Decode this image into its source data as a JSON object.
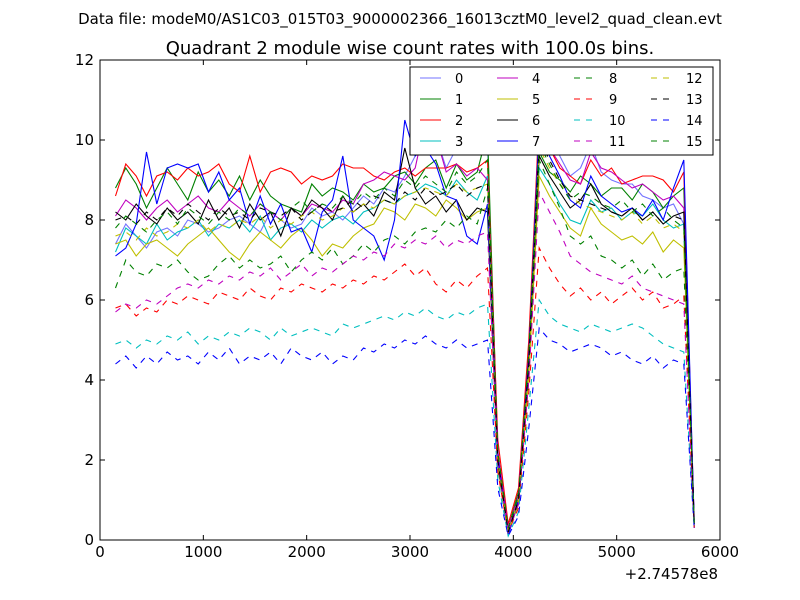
{
  "chart_data": {
    "type": "line",
    "suptitle": "Data file: modeM0/AS1C03_015T03_9000002366_16013cztM0_level2_quad_clean.evt",
    "title": "Quadrant 2 module wise count rates with 100.0s bins.",
    "xlabel": "",
    "ylabel": "",
    "x_offset_label": "+2.74578e8",
    "xlim": [
      0,
      6000
    ],
    "ylim": [
      0,
      12
    ],
    "xticks": [
      0,
      1000,
      2000,
      3000,
      4000,
      5000,
      6000
    ],
    "yticks": [
      0,
      2,
      4,
      6,
      8,
      10,
      12
    ],
    "grid": false,
    "legend_position": "top-right",
    "legend_columns": 4,
    "x": [
      150,
      250,
      350,
      450,
      550,
      650,
      750,
      850,
      950,
      1050,
      1150,
      1250,
      1350,
      1450,
      1550,
      1650,
      1750,
      1850,
      1950,
      2050,
      2150,
      2250,
      2350,
      2450,
      2550,
      2650,
      2750,
      2850,
      2950,
      3050,
      3150,
      3250,
      3350,
      3450,
      3550,
      3650,
      3750,
      3850,
      3950,
      4050,
      4150,
      4250,
      4350,
      4450,
      4550,
      4650,
      4750,
      4850,
      4950,
      5050,
      5150,
      5250,
      5350,
      5450,
      5550,
      5650,
      5750
    ],
    "series": [
      {
        "name": "0",
        "color": "#0000ff",
        "dash": "solid",
        "alpha": 0.55,
        "values": [
          7.4,
          7.9,
          7.6,
          7.3,
          7.7,
          7.8,
          7.6,
          8.0,
          7.9,
          7.7,
          7.8,
          8.0,
          8.1,
          7.9,
          7.7,
          8.2,
          8.0,
          7.8,
          7.9,
          8.3,
          8.1,
          8.2,
          8.0,
          8.3,
          8.6,
          8.4,
          8.8,
          8.7,
          9.1,
          9.6,
          10.5,
          10.1,
          9.3,
          9.8,
          10.6,
          10.2,
          9.9,
          2.0,
          0.2,
          1.0,
          4.5,
          10.6,
          10.4,
          9.6,
          9.1,
          9.3,
          9.9,
          9.2,
          9.0,
          8.9,
          8.9,
          8.6,
          8.5,
          8.3,
          8.4,
          7.9,
          0.5
        ]
      },
      {
        "name": "1",
        "color": "#008000",
        "dash": "solid",
        "alpha": 1,
        "values": [
          8.8,
          9.3,
          8.9,
          8.3,
          8.8,
          9.3,
          8.9,
          8.5,
          9.2,
          8.7,
          9.0,
          8.6,
          9.1,
          8.5,
          9.0,
          8.6,
          8.4,
          8.3,
          8.2,
          8.9,
          8.6,
          8.8,
          8.7,
          8.5,
          8.9,
          8.7,
          8.8,
          9.1,
          9.2,
          8.9,
          9.3,
          9.5,
          8.8,
          9.4,
          9.0,
          9.2,
          10.2,
          2.2,
          0.3,
          1.2,
          4.8,
          9.7,
          9.2,
          9.0,
          8.7,
          9.1,
          8.9,
          8.6,
          8.8,
          8.8,
          8.5,
          8.9,
          8.7,
          8.3,
          8.6,
          8.8,
          0.4
        ]
      },
      {
        "name": "2",
        "color": "#ff0000",
        "dash": "solid",
        "alpha": 1,
        "values": [
          8.6,
          9.4,
          9.1,
          8.6,
          9.1,
          9.2,
          9.0,
          9.3,
          9.1,
          9.2,
          9.4,
          8.9,
          8.7,
          9.6,
          8.7,
          9.2,
          9.3,
          9.2,
          8.9,
          9.1,
          9.0,
          9.1,
          9.4,
          9.3,
          9.3,
          9.1,
          9.0,
          9.2,
          9.3,
          9.1,
          9.3,
          9.3,
          9.3,
          9.4,
          9.2,
          9.3,
          9.5,
          2.5,
          0.4,
          1.3,
          5.0,
          10.6,
          9.8,
          9.3,
          9.1,
          8.9,
          9.5,
          9.1,
          9.3,
          8.9,
          9.0,
          9.1,
          9.1,
          9.0,
          8.7,
          9.2,
          0.4
        ]
      },
      {
        "name": "3",
        "color": "#00bfbf",
        "dash": "solid",
        "alpha": 1,
        "values": [
          7.2,
          7.8,
          7.6,
          7.4,
          7.9,
          7.5,
          7.7,
          7.8,
          8.0,
          7.6,
          7.9,
          7.8,
          8.0,
          7.7,
          8.1,
          7.5,
          7.8,
          7.9,
          7.7,
          8.0,
          7.8,
          8.0,
          8.1,
          7.9,
          8.2,
          8.3,
          8.5,
          8.4,
          8.6,
          8.7,
          8.9,
          8.8,
          8.6,
          9.0,
          8.7,
          8.5,
          9.1,
          2.0,
          0.2,
          1.0,
          4.3,
          9.3,
          8.9,
          8.4,
          8.0,
          7.9,
          8.5,
          8.2,
          8.3,
          8.0,
          8.2,
          8.1,
          8.4,
          8.0,
          7.8,
          7.9,
          0.4
        ]
      },
      {
        "name": "4",
        "color": "#bf00bf",
        "dash": "solid",
        "alpha": 1,
        "values": [
          8.1,
          8.5,
          8.3,
          8.0,
          8.3,
          8.5,
          8.2,
          8.4,
          8.6,
          8.3,
          8.2,
          8.5,
          8.3,
          8.1,
          8.4,
          8.2,
          8.0,
          8.3,
          8.1,
          8.4,
          8.3,
          8.2,
          8.5,
          8.4,
          8.9,
          9.0,
          9.2,
          9.1,
          9.0,
          9.3,
          10.5,
          10.1,
          9.2,
          9.4,
          9.1,
          9.3,
          9.0,
          2.2,
          0.3,
          1.1,
          4.6,
          10.4,
          9.8,
          9.4,
          9.0,
          8.9,
          9.7,
          9.3,
          9.2,
          9.0,
          8.8,
          8.9,
          8.7,
          8.5,
          8.6,
          8.3,
          0.5
        ]
      },
      {
        "name": "5",
        "color": "#bfbf00",
        "dash": "solid",
        "alpha": 1,
        "values": [
          7.4,
          7.5,
          7.1,
          7.4,
          7.5,
          7.3,
          7.1,
          7.4,
          7.6,
          7.8,
          7.5,
          7.2,
          7.0,
          7.4,
          7.7,
          7.5,
          7.3,
          7.6,
          7.8,
          7.5,
          7.1,
          7.4,
          7.3,
          7.6,
          7.8,
          7.9,
          8.3,
          8.2,
          8.0,
          8.4,
          8.3,
          8.1,
          8.5,
          8.3,
          8.0,
          8.2,
          8.3,
          1.8,
          0.2,
          0.9,
          4.1,
          9.1,
          8.6,
          8.2,
          7.8,
          7.6,
          8.3,
          7.9,
          7.7,
          7.5,
          7.6,
          7.4,
          7.7,
          7.2,
          7.5,
          7.3,
          0.3
        ]
      },
      {
        "name": "6",
        "color": "#000000",
        "dash": "solid",
        "alpha": 1,
        "values": [
          8.2,
          8.0,
          8.4,
          8.1,
          7.9,
          8.3,
          8.0,
          8.2,
          7.9,
          8.5,
          8.0,
          8.3,
          7.8,
          8.4,
          8.0,
          8.2,
          7.6,
          8.3,
          8.1,
          8.5,
          8.3,
          8.0,
          8.6,
          8.2,
          8.4,
          8.1,
          8.7,
          8.5,
          9.8,
          8.8,
          8.4,
          8.6,
          8.2,
          8.5,
          8.0,
          8.3,
          8.2,
          2.0,
          0.2,
          1.0,
          4.4,
          9.6,
          9.1,
          8.7,
          8.3,
          8.5,
          8.9,
          8.4,
          8.2,
          8.1,
          8.3,
          8.0,
          8.2,
          7.9,
          8.1,
          8.2,
          0.4
        ]
      },
      {
        "name": "7",
        "color": "#0000ff",
        "dash": "solid",
        "alpha": 1,
        "values": [
          7.1,
          7.3,
          7.9,
          9.7,
          8.4,
          9.3,
          9.4,
          9.3,
          9.4,
          8.7,
          9.2,
          8.5,
          8.8,
          7.9,
          8.6,
          7.9,
          8.4,
          7.7,
          7.8,
          7.2,
          8.2,
          8.5,
          9.6,
          8.0,
          7.8,
          7.6,
          7.0,
          8.0,
          10.5,
          9.6,
          9.8,
          9.4,
          8.6,
          8.5,
          7.6,
          7.4,
          8.4,
          2.1,
          0.1,
          1.0,
          4.6,
          10.3,
          9.6,
          9.1,
          8.5,
          8.3,
          9.1,
          8.6,
          8.4,
          8.2,
          8.3,
          8.1,
          8.5,
          8.0,
          8.8,
          9.5,
          0.4
        ]
      },
      {
        "name": "8",
        "color": "#008000",
        "dash": "dashed",
        "alpha": 1,
        "values": [
          6.3,
          7.0,
          6.7,
          6.6,
          6.9,
          6.8,
          7.0,
          6.7,
          6.5,
          6.6,
          6.9,
          7.1,
          6.8,
          7.0,
          6.8,
          6.9,
          7.1,
          6.7,
          7.0,
          7.2,
          7.0,
          7.3,
          6.9,
          7.1,
          7.4,
          7.2,
          7.5,
          7.6,
          7.4,
          7.7,
          7.8,
          7.7,
          8.0,
          7.8,
          8.1,
          7.9,
          8.8,
          1.8,
          0.2,
          0.9,
          4.0,
          9.5,
          8.9,
          8.3,
          7.6,
          7.4,
          7.6,
          7.1,
          7.0,
          6.8,
          7.0,
          6.6,
          6.9,
          6.5,
          6.7,
          6.8,
          0.3
        ]
      },
      {
        "name": "9",
        "color": "#ff0000",
        "dash": "dashed",
        "alpha": 1,
        "values": [
          5.8,
          5.9,
          5.6,
          5.8,
          5.7,
          6.0,
          5.9,
          6.1,
          6.0,
          5.9,
          6.2,
          6.1,
          6.0,
          6.3,
          6.1,
          6.0,
          6.3,
          6.2,
          6.4,
          6.3,
          6.2,
          6.4,
          6.3,
          6.5,
          6.4,
          6.6,
          6.5,
          6.7,
          6.9,
          6.6,
          6.8,
          6.4,
          6.2,
          6.5,
          6.3,
          6.6,
          6.8,
          1.7,
          0.2,
          0.8,
          3.7,
          7.3,
          6.8,
          6.4,
          6.1,
          6.3,
          6.0,
          6.2,
          5.9,
          6.1,
          6.3,
          6.0,
          6.2,
          5.8,
          5.9,
          6.1,
          0.3
        ]
      },
      {
        "name": "10",
        "color": "#00bfbf",
        "dash": "dashed",
        "alpha": 1,
        "values": [
          4.9,
          5.0,
          4.8,
          5.0,
          4.9,
          5.1,
          5.0,
          5.2,
          4.9,
          5.1,
          5.0,
          5.2,
          5.1,
          5.3,
          5.2,
          5.0,
          5.3,
          5.1,
          5.2,
          5.3,
          5.2,
          5.1,
          5.4,
          5.3,
          5.4,
          5.5,
          5.6,
          5.5,
          5.7,
          5.6,
          5.8,
          5.6,
          5.5,
          5.7,
          5.6,
          5.8,
          5.9,
          1.5,
          0.1,
          0.7,
          3.3,
          6.0,
          5.6,
          5.4,
          5.3,
          5.2,
          5.4,
          5.3,
          5.2,
          5.3,
          5.4,
          5.3,
          5.1,
          4.9,
          4.8,
          4.7,
          0.3
        ]
      },
      {
        "name": "11",
        "color": "#bf00bf",
        "dash": "dashed",
        "alpha": 1,
        "values": [
          5.7,
          5.9,
          5.8,
          6.0,
          5.9,
          6.1,
          6.3,
          6.4,
          6.3,
          6.5,
          6.4,
          6.6,
          6.5,
          6.7,
          6.6,
          6.8,
          6.5,
          6.7,
          6.9,
          6.6,
          6.8,
          6.7,
          6.9,
          7.1,
          7.0,
          7.2,
          7.1,
          7.4,
          7.3,
          7.5,
          7.4,
          7.6,
          7.3,
          7.5,
          7.4,
          7.6,
          7.7,
          1.9,
          0.2,
          0.9,
          4.0,
          8.7,
          8.2,
          7.7,
          7.1,
          6.9,
          6.7,
          6.6,
          6.5,
          6.4,
          6.6,
          6.3,
          6.2,
          6.1,
          6.0,
          5.9,
          0.3
        ]
      },
      {
        "name": "12",
        "color": "#bfbf00",
        "dash": "dashed",
        "alpha": 1,
        "values": [
          7.6,
          7.7,
          7.5,
          7.8,
          7.6,
          7.7,
          7.9,
          7.8,
          8.0,
          7.7,
          7.9,
          7.8,
          8.0,
          7.9,
          8.1,
          7.8,
          8.0,
          7.9,
          8.1,
          8.2,
          8.0,
          8.1,
          8.3,
          8.2,
          8.4,
          8.3,
          8.5,
          8.4,
          8.6,
          8.7,
          8.8,
          8.7,
          8.6,
          8.9,
          8.7,
          8.8,
          8.9,
          2.1,
          0.2,
          1.0,
          4.3,
          9.8,
          9.3,
          8.9,
          8.6,
          8.4,
          8.3,
          8.2,
          8.1,
          8.0,
          8.2,
          7.9,
          8.1,
          7.8,
          7.9,
          7.7,
          0.4
        ]
      },
      {
        "name": "13",
        "color": "#000000",
        "dash": "dashed",
        "alpha": 1,
        "values": [
          8.0,
          8.1,
          7.9,
          8.2,
          8.0,
          8.3,
          8.1,
          8.4,
          8.2,
          8.0,
          8.3,
          8.1,
          8.2,
          8.0,
          8.3,
          8.2,
          8.1,
          8.3,
          8.0,
          8.2,
          8.4,
          8.2,
          8.3,
          8.5,
          8.3,
          8.6,
          8.5,
          8.4,
          8.7,
          8.5,
          8.8,
          8.6,
          8.7,
          8.9,
          8.6,
          8.8,
          8.9,
          2.0,
          0.2,
          1.0,
          4.4,
          10.0,
          9.5,
          9.0,
          8.6,
          8.5,
          8.4,
          8.3,
          8.2,
          8.1,
          8.3,
          8.0,
          8.2,
          7.9,
          8.1,
          8.0,
          0.4
        ]
      },
      {
        "name": "14",
        "color": "#0000ff",
        "dash": "dashed",
        "alpha": 1,
        "values": [
          4.4,
          4.6,
          4.3,
          4.6,
          4.4,
          4.7,
          4.5,
          4.6,
          4.4,
          4.7,
          4.5,
          4.8,
          4.4,
          4.6,
          4.5,
          4.7,
          4.4,
          4.8,
          4.6,
          4.5,
          4.7,
          4.4,
          4.6,
          4.5,
          4.8,
          4.7,
          4.9,
          4.8,
          5.0,
          4.9,
          5.1,
          4.9,
          4.8,
          5.0,
          4.8,
          4.9,
          5.0,
          1.3,
          0.1,
          0.6,
          2.8,
          5.3,
          5.0,
          4.9,
          4.7,
          4.8,
          4.9,
          4.8,
          4.6,
          4.7,
          4.5,
          4.4,
          4.6,
          4.3,
          4.5,
          4.4,
          0.3
        ]
      },
      {
        "name": "15",
        "color": "#008000",
        "dash": "dashed",
        "alpha": 1,
        "values": [
          7.8,
          8.1,
          7.9,
          7.7,
          8.0,
          8.2,
          7.9,
          8.3,
          8.1,
          7.9,
          8.2,
          8.0,
          8.3,
          8.1,
          8.4,
          8.2,
          8.0,
          8.3,
          8.5,
          8.2,
          8.4,
          8.3,
          8.6,
          8.4,
          8.7,
          8.5,
          8.8,
          8.6,
          9.0,
          8.8,
          9.1,
          8.9,
          8.7,
          9.2,
          8.9,
          9.1,
          9.5,
          2.2,
          0.3,
          1.1,
          4.7,
          9.9,
          9.4,
          8.9,
          8.5,
          8.7,
          8.6,
          8.4,
          8.3,
          8.5,
          8.2,
          8.4,
          8.1,
          8.3,
          8.0,
          7.8,
          0.4
        ]
      }
    ]
  }
}
